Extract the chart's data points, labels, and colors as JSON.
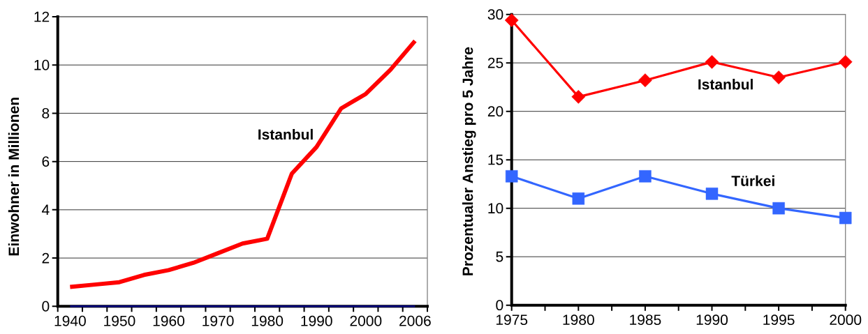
{
  "chart_data": [
    {
      "type": "line",
      "ylabel": "Einwohner in Millionen",
      "categories": [
        "1940",
        null,
        "1950",
        null,
        "1960",
        null,
        "1970",
        null,
        "1980",
        null,
        "1990",
        null,
        "2000",
        null,
        "2006"
      ],
      "series": [
        {
          "name": "Istanbul",
          "color": "#ff0000",
          "values": [
            0.8,
            0.9,
            1.0,
            1.3,
            1.5,
            1.8,
            2.2,
            2.6,
            2.8,
            5.5,
            6.6,
            8.2,
            8.8,
            9.8,
            11.0
          ]
        },
        {
          "color": "#000080",
          "values": [
            0,
            0,
            0,
            0,
            0,
            0,
            0,
            0,
            0,
            0,
            0,
            0,
            0,
            0,
            0
          ]
        }
      ],
      "ylim": [
        0,
        12
      ],
      "yticks": [
        0,
        2,
        4,
        6,
        8,
        10,
        12
      ],
      "grid": "y",
      "marker": "none"
    },
    {
      "type": "line",
      "ylabel": "Prozentualer Anstieg pro 5 Jahre",
      "x": [
        1975,
        1980,
        1985,
        1990,
        1995,
        2000
      ],
      "series": [
        {
          "name": "Istanbul",
          "color": "#ff0000",
          "marker": "diamond",
          "values": [
            29.4,
            21.5,
            23.2,
            25.1,
            23.5,
            25.1
          ]
        },
        {
          "name": "Türkei",
          "color": "#3366ff",
          "marker": "square",
          "values": [
            13.3,
            11.0,
            13.3,
            11.5,
            10.0,
            9.0
          ]
        }
      ],
      "xlim": [
        1975,
        2000
      ],
      "xticks": [
        1975,
        {
          "value": 1977.5,
          "label": null
        },
        1980,
        {
          "value": 1982.5,
          "label": null
        },
        1985,
        {
          "value": 1987.5,
          "label": null
        },
        1990,
        {
          "value": 1992.5,
          "label": null
        },
        1995,
        {
          "value": 1997.5,
          "label": null
        },
        2000
      ],
      "ylim": [
        0,
        30
      ],
      "yticks": [
        0,
        5,
        10,
        15,
        20,
        25,
        30
      ],
      "grid": "y"
    }
  ]
}
